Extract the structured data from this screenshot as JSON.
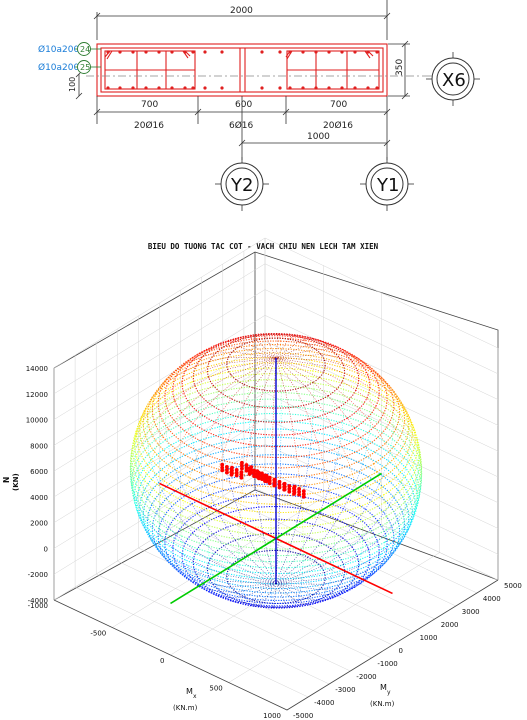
{
  "section": {
    "dim_total": "2000",
    "dim_height": "350",
    "dim_bottom_offset": "100",
    "segments": [
      "700",
      "600",
      "700"
    ],
    "rebar": [
      "20Ø16",
      "6Ø16",
      "20Ø16"
    ],
    "offset_to_grid": "1000",
    "stirrups": [
      {
        "text": "Ø10a200",
        "mark": "24"
      },
      {
        "text": "Ø10a200",
        "mark": "25"
      }
    ],
    "grid_labels": {
      "x": "X6",
      "y2": "Y2",
      "y1": "Y1"
    },
    "colors": {
      "outline": "#e02020",
      "dims": "#333333",
      "label": "#1a7dd8",
      "marker": "#2e7d32"
    }
  },
  "chart_data": {
    "type": "scatter",
    "title": "BIEU DO TUONG TAC COT - VACH CHIU NEN LECH TAM XIEN",
    "xlabel": "M",
    "xlabel_sub": "x",
    "xlabel_unit": "(KN.m)",
    "ylabel": "M",
    "ylabel_sub": "y",
    "ylabel_unit": "(KN.m)",
    "zlabel": "N",
    "zlabel_unit": "(KN)",
    "x_ticks": [
      "-1000",
      "-500",
      "0",
      "500",
      "1000"
    ],
    "y_ticks": [
      "-5000",
      "-4000",
      "-3000",
      "-2000",
      "-1000",
      "0",
      "1000",
      "2000",
      "3000",
      "4000",
      "5000"
    ],
    "z_ticks": [
      "-4000",
      "-2000",
      "0",
      "2000",
      "4000",
      "6000",
      "8000",
      "10000",
      "12000",
      "14000"
    ],
    "xlim": [
      -1000,
      1000
    ],
    "ylim": [
      -5000,
      5000
    ],
    "zlim": [
      -4000,
      14000
    ],
    "grid": true,
    "surface": {
      "n_max": 14000,
      "n_min": -3500,
      "mx_max": 950,
      "my_max": 4500,
      "colormap": "jet"
    },
    "load_points": [
      {
        "mx": -150,
        "my": -1500,
        "n": 6200
      },
      {
        "mx": -120,
        "my": -1200,
        "n": 5800
      },
      {
        "mx": -90,
        "my": -900,
        "n": 6000
      },
      {
        "mx": -60,
        "my": -700,
        "n": 5500
      },
      {
        "mx": -30,
        "my": -500,
        "n": 5200
      },
      {
        "mx": 0,
        "my": -300,
        "n": 4800
      },
      {
        "mx": 30,
        "my": 0,
        "n": 4300
      },
      {
        "mx": 60,
        "my": 300,
        "n": 3800
      },
      {
        "mx": 90,
        "my": 600,
        "n": 3400
      }
    ],
    "colors": {
      "load": "#ff0000",
      "x_axis": "#ff0000",
      "y_axis": "#00cc00",
      "z_axis": "#0000cc",
      "mesh_top": "#ffd000",
      "mesh_bottom": "#0033ff"
    }
  }
}
